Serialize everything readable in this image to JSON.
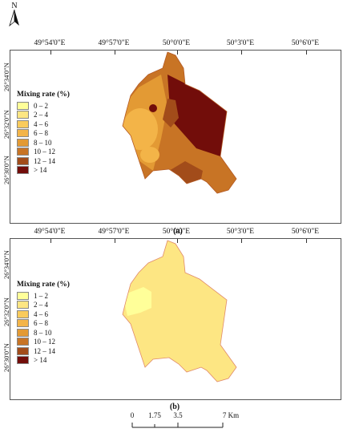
{
  "north": {
    "letter": "N"
  },
  "lon_labels": [
    "49°54'0\"E",
    "49°57'0\"E",
    "50°0'0\"E",
    "50°3'0\"E",
    "50°6'0\"E"
  ],
  "lat_labels": [
    "26°34'0\"N",
    "26°32'0\"N",
    "26°30'0\"N"
  ],
  "panels": [
    {
      "caption": "(a)",
      "legend": {
        "title": "Mixing rate (%)",
        "items": [
          {
            "label": "0 – 2",
            "color": "#ffff99"
          },
          {
            "label": "2 – 4",
            "color": "#fde683"
          },
          {
            "label": "4 – 6",
            "color": "#f9cb5c"
          },
          {
            "label": "6 – 8",
            "color": "#f3b448"
          },
          {
            "label": "8 – 10",
            "color": "#e39a34"
          },
          {
            "label": "10 – 12",
            "color": "#c87425"
          },
          {
            "label": "12 – 14",
            "color": "#a24c1a"
          },
          {
            "label": "> 14",
            "color": "#720d0a"
          }
        ]
      }
    },
    {
      "caption": "(b)",
      "legend": {
        "title": "Mixing rate (%)",
        "items": [
          {
            "label": "1 – 2",
            "color": "#ffff99"
          },
          {
            "label": "2 – 4",
            "color": "#fde683"
          },
          {
            "label": "4 – 6",
            "color": "#f9cb5c"
          },
          {
            "label": "6 – 8",
            "color": "#f3b448"
          },
          {
            "label": "8 – 10",
            "color": "#e39a34"
          },
          {
            "label": "10 – 12",
            "color": "#c87425"
          },
          {
            "label": "12 – 14",
            "color": "#a24c1a"
          },
          {
            "label": "> 14",
            "color": "#720d0a"
          }
        ]
      }
    }
  ],
  "scale": {
    "ticks": [
      "0",
      "1.75",
      "3.5",
      "7 Km"
    ]
  }
}
